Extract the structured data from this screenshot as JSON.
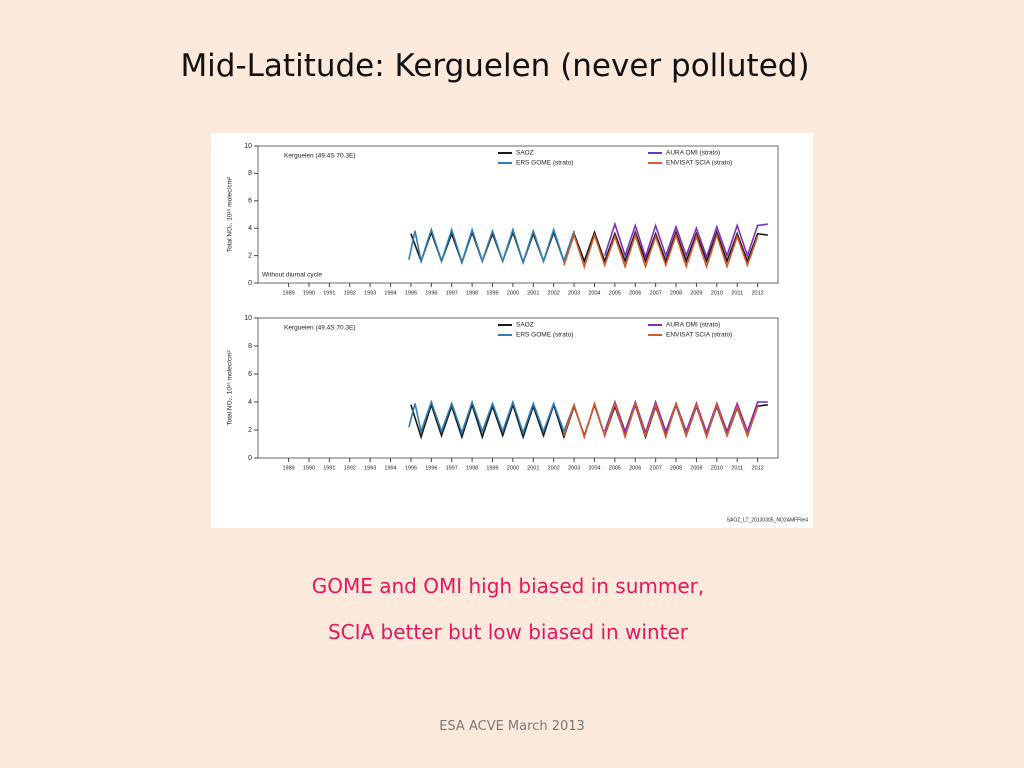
{
  "title": "Mid-Latitude: Kerguelen (never polluted)",
  "caption": [
    "GOME and OMI high biased in summer,",
    "SCIA better but low biased in winter"
  ],
  "footer": "ESA ACVE March 2013",
  "image_label": "SAOZ_LT_20130305_NO2AMFFile4",
  "chart_data": [
    {
      "type": "line",
      "title": "Kerguelen (49.4S 70.3E)",
      "annotation": "Without diurnal cycle",
      "ylabel": "Total NO₂, 10¹⁵ molec/cm²",
      "xlim": [
        1987.5,
        2013
      ],
      "ylim": [
        0,
        10
      ],
      "xticks": [
        1989,
        1990,
        1991,
        1992,
        1993,
        1994,
        1995,
        1996,
        1997,
        1998,
        1999,
        2000,
        2001,
        2002,
        2003,
        2004,
        2005,
        2006,
        2007,
        2008,
        2009,
        2010,
        2011,
        2012
      ],
      "yticks": [
        0,
        2,
        4,
        6,
        8,
        10
      ],
      "series": [
        {
          "name": "SAOZ",
          "color": "#1a1a1a",
          "x": [
            1995,
            1995.5,
            1996,
            1996.5,
            1997,
            1997.5,
            1998,
            1998.5,
            1999,
            1999.5,
            2000,
            2000.5,
            2001,
            2001.5,
            2002,
            2002.5,
            2003,
            2003.5,
            2004,
            2004.5,
            2005,
            2005.5,
            2006,
            2006.5,
            2007,
            2007.5,
            2008,
            2008.5,
            2009,
            2009.5,
            2010,
            2010.5,
            2011,
            2011.5,
            2012,
            2012.5
          ],
          "values": [
            3.6,
            1.6,
            3.7,
            1.6,
            3.6,
            1.5,
            3.7,
            1.6,
            3.6,
            1.6,
            3.7,
            1.5,
            3.6,
            1.6,
            3.7,
            1.6,
            3.6,
            1.6,
            3.7,
            1.6,
            3.6,
            1.6,
            3.7,
            1.6,
            3.6,
            1.6,
            3.7,
            1.6,
            3.6,
            1.6,
            3.7,
            1.6,
            3.6,
            1.6,
            3.6,
            3.5
          ]
        },
        {
          "name": "ERS GOME (strato)",
          "color": "#2f7fb5",
          "x": [
            1994.9,
            1995.2,
            1995.5,
            1996,
            1996.5,
            1997,
            1997.5,
            1998,
            1998.5,
            1999,
            1999.5,
            2000,
            2000.5,
            2001,
            2001.5,
            2002,
            2002.5,
            2003
          ],
          "values": [
            1.7,
            3.8,
            1.6,
            3.9,
            1.6,
            3.9,
            1.5,
            3.9,
            1.6,
            3.8,
            1.6,
            3.9,
            1.5,
            3.8,
            1.6,
            3.9,
            1.6,
            3.8
          ]
        },
        {
          "name": "AURA OMI (strato)",
          "color": "#7b2fbf",
          "x": [
            2004.5,
            2005,
            2005.5,
            2006,
            2006.5,
            2007,
            2007.5,
            2008,
            2008.5,
            2009,
            2009.5,
            2010,
            2010.5,
            2011,
            2011.5,
            2012,
            2012.5
          ],
          "values": [
            2.0,
            4.3,
            2.0,
            4.2,
            1.9,
            4.2,
            2.0,
            4.1,
            2.0,
            4.0,
            1.9,
            4.1,
            2.0,
            4.2,
            2.0,
            4.2,
            4.3
          ]
        },
        {
          "name": "ENVISAT SCIA (strato)",
          "color": "#d9582b",
          "x": [
            2002.5,
            2003,
            2003.5,
            2004,
            2004.5,
            2005,
            2005.5,
            2006,
            2006.5,
            2007,
            2007.5,
            2008,
            2008.5,
            2009,
            2009.5,
            2010,
            2010.5,
            2011,
            2011.5,
            2012
          ],
          "values": [
            1.3,
            3.5,
            1.2,
            3.5,
            1.3,
            3.4,
            1.2,
            3.5,
            1.2,
            3.4,
            1.3,
            3.5,
            1.2,
            3.4,
            1.2,
            3.5,
            1.2,
            3.4,
            1.3,
            3.4
          ]
        }
      ]
    },
    {
      "type": "line",
      "title": "Kerguelen (49.4S 70.3E)",
      "ylabel": "Total NO₂, 10¹⁵ molec/cm²",
      "xlim": [
        1987.5,
        2013
      ],
      "ylim": [
        0,
        10
      ],
      "xticks": [
        1989,
        1990,
        1991,
        1992,
        1993,
        1994,
        1995,
        1996,
        1997,
        1998,
        1999,
        2000,
        2001,
        2002,
        2003,
        2004,
        2005,
        2006,
        2007,
        2008,
        2009,
        2010,
        2011,
        2012
      ],
      "yticks": [
        0,
        2,
        4,
        6,
        8,
        10
      ],
      "series": [
        {
          "name": "SAOZ",
          "color": "#1a1a1a",
          "x": [
            1995,
            1995.5,
            1996,
            1996.5,
            1997,
            1997.5,
            1998,
            1998.5,
            1999,
            1999.5,
            2000,
            2000.5,
            2001,
            2001.5,
            2002,
            2002.5,
            2003,
            2003.5,
            2004,
            2004.5,
            2005,
            2005.5,
            2006,
            2006.5,
            2007,
            2007.5,
            2008,
            2008.5,
            2009,
            2009.5,
            2010,
            2010.5,
            2011,
            2011.5,
            2012,
            2012.5
          ],
          "values": [
            3.8,
            1.5,
            3.8,
            1.6,
            3.7,
            1.5,
            3.8,
            1.5,
            3.7,
            1.6,
            3.8,
            1.5,
            3.7,
            1.6,
            3.8,
            1.5,
            3.7,
            1.6,
            3.8,
            1.6,
            3.7,
            1.6,
            3.8,
            1.5,
            3.7,
            1.6,
            3.8,
            1.6,
            3.7,
            1.6,
            3.7,
            1.6,
            3.6,
            1.6,
            3.7,
            3.8
          ]
        },
        {
          "name": "ERS GOME (strato)",
          "color": "#2f7fb5",
          "x": [
            1994.9,
            1995.2,
            1995.5,
            1996,
            1996.5,
            1997,
            1997.5,
            1998,
            1998.5,
            1999,
            1999.5,
            2000,
            2000.5,
            2001,
            2001.5,
            2002,
            2002.5,
            2003
          ],
          "values": [
            2.2,
            3.9,
            1.9,
            4.0,
            1.9,
            3.9,
            1.8,
            4.0,
            1.9,
            3.9,
            1.9,
            4.0,
            1.8,
            3.9,
            1.9,
            3.9,
            1.9,
            3.8
          ]
        },
        {
          "name": "AURA OMI (strato)",
          "color": "#7b2fbf",
          "x": [
            2004.5,
            2005,
            2005.5,
            2006,
            2006.5,
            2007,
            2007.5,
            2008,
            2008.5,
            2009,
            2009.5,
            2010,
            2010.5,
            2011,
            2011.5,
            2012,
            2012.5
          ],
          "values": [
            1.9,
            4.0,
            1.9,
            4.0,
            1.8,
            4.0,
            1.9,
            3.9,
            1.9,
            3.9,
            1.8,
            3.9,
            1.9,
            3.9,
            1.9,
            4.0,
            4.0
          ]
        },
        {
          "name": "ENVISAT SCIA (strato)",
          "color": "#d9582b",
          "x": [
            2002.5,
            2003,
            2003.5,
            2004,
            2004.5,
            2005,
            2005.5,
            2006,
            2006.5,
            2007,
            2007.5,
            2008,
            2008.5,
            2009,
            2009.5,
            2010,
            2010.5,
            2011,
            2011.5,
            2012
          ],
          "values": [
            1.6,
            3.8,
            1.5,
            3.9,
            1.6,
            3.9,
            1.5,
            3.9,
            1.6,
            3.8,
            1.5,
            3.9,
            1.6,
            3.8,
            1.5,
            3.8,
            1.6,
            3.7,
            1.6,
            3.7
          ]
        }
      ]
    }
  ]
}
